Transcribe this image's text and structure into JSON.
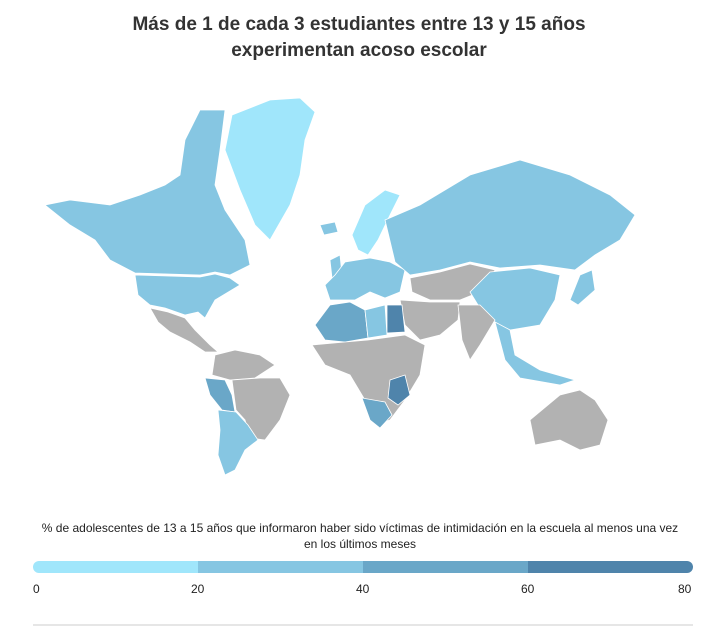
{
  "title_line1": "Más de 1 de cada 3 estudiantes entre 13 y 15 años",
  "title_line2": "experimentan acoso escolar",
  "legend": {
    "label": "% de adolescentes de 13 a 15 años que informaron haber sido víctimas de intimidación en la escuela al menos una vez en los últimos meses",
    "ticks": [
      "0",
      "20",
      "40",
      "60",
      "80"
    ],
    "bins": [
      {
        "range": [
          0,
          20
        ],
        "color": "#a0e6fb"
      },
      {
        "range": [
          20,
          40
        ],
        "color": "#86c6e2"
      },
      {
        "range": [
          40,
          60
        ],
        "color": "#6aa7c8"
      },
      {
        "range": [
          60,
          80
        ],
        "color": "#4f84ab"
      }
    ],
    "no_data_color": "#b2b2b2"
  },
  "regions": [
    {
      "name": "greenland",
      "bin": 0
    },
    {
      "name": "canada",
      "bin": 1
    },
    {
      "name": "united-states",
      "bin": 1
    },
    {
      "name": "mexico-central-america",
      "bin": null
    },
    {
      "name": "colombia-venezuela",
      "bin": null
    },
    {
      "name": "peru",
      "bin": 2
    },
    {
      "name": "brazil",
      "bin": null
    },
    {
      "name": "argentina-chile",
      "bin": 1
    },
    {
      "name": "scandinavia",
      "bin": 0
    },
    {
      "name": "western-europe",
      "bin": 1
    },
    {
      "name": "russia",
      "bin": 1
    },
    {
      "name": "central-asia",
      "bin": null
    },
    {
      "name": "china",
      "bin": 1
    },
    {
      "name": "middle-east",
      "bin": null
    },
    {
      "name": "india",
      "bin": null
    },
    {
      "name": "algeria-morocco",
      "bin": 2
    },
    {
      "name": "libya-tunisia",
      "bin": 1
    },
    {
      "name": "egypt",
      "bin": 3
    },
    {
      "name": "sub-saharan-africa",
      "bin": null
    },
    {
      "name": "southern-africa",
      "bin": 2
    },
    {
      "name": "east-africa",
      "bin": 3
    },
    {
      "name": "southeast-asia",
      "bin": 1
    },
    {
      "name": "australia",
      "bin": null
    },
    {
      "name": "iceland-uk",
      "bin": 1
    },
    {
      "name": "japan",
      "bin": 1
    }
  ]
}
